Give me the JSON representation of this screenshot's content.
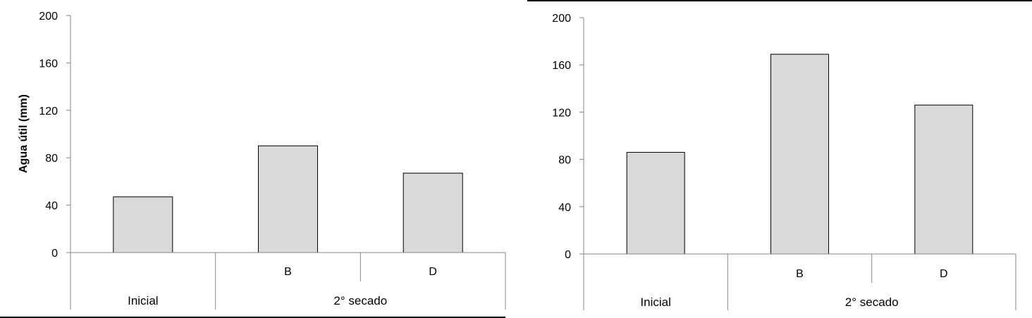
{
  "chart_data": [
    {
      "type": "bar",
      "ylabel": "Agua útil (mm)",
      "ylim": [
        0,
        200
      ],
      "yticks": [
        0,
        40,
        80,
        120,
        160,
        200
      ],
      "categories": [
        "Inicial",
        "B",
        "D"
      ],
      "category_groups": [
        {
          "label": "Inicial",
          "members": [
            ""
          ]
        },
        {
          "label": "2° secado",
          "members": [
            "B",
            "D"
          ]
        }
      ],
      "values": [
        47,
        90,
        67
      ],
      "bar_color": "#d9d9d9",
      "grid": false
    },
    {
      "type": "bar",
      "ylabel": "",
      "ylim": [
        0,
        200
      ],
      "yticks": [
        0,
        40,
        80,
        120,
        160,
        200
      ],
      "categories": [
        "Inicial",
        "B",
        "D"
      ],
      "category_groups": [
        {
          "label": "Inicial",
          "members": [
            ""
          ]
        },
        {
          "label": "2° secado",
          "members": [
            "B",
            "D"
          ]
        }
      ],
      "values": [
        86,
        169,
        126
      ],
      "bar_color": "#d9d9d9",
      "grid": false
    }
  ]
}
